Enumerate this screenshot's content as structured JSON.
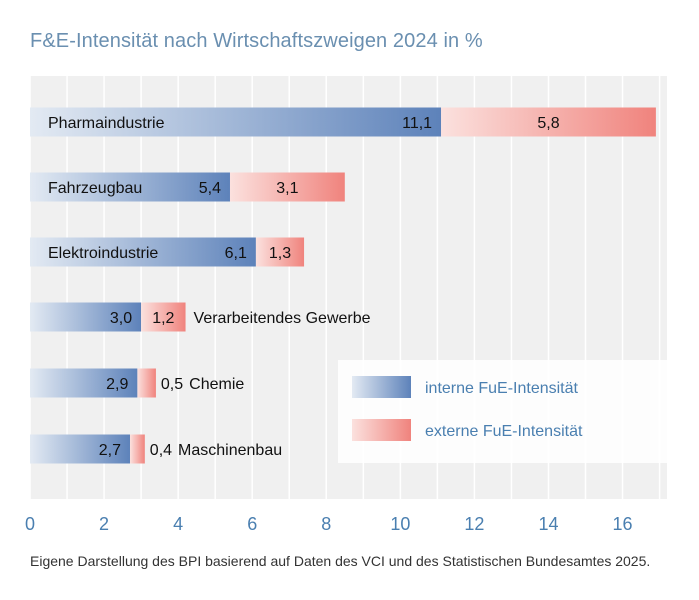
{
  "chart_data": {
    "type": "bar",
    "orientation": "horizontal",
    "stacked": true,
    "title": "F&E-Intensität nach Wirtschaftszweigen 2024 in %",
    "categories": [
      "Pharmaindustrie",
      "Fahrzeugbau",
      "Elektroindustrie",
      "Verarbeitendes Gewerbe",
      "Chemie",
      "Maschinenbau"
    ],
    "category_label_position": [
      "inside",
      "inside",
      "inside",
      "outside",
      "outside",
      "outside"
    ],
    "series": [
      {
        "name": "interne FuE-Intensität",
        "values": [
          11.1,
          5.4,
          6.1,
          3.0,
          2.9,
          2.7
        ],
        "labels": [
          "11,1",
          "5,4",
          "6,1",
          "3,0",
          "2,9",
          "2,7"
        ]
      },
      {
        "name": "externe FuE-Intensität",
        "values": [
          5.8,
          3.1,
          1.3,
          1.2,
          0.5,
          0.4
        ],
        "labels": [
          "5,8",
          "3,1",
          "1,3",
          "1,2",
          "0,5",
          "0,4"
        ]
      }
    ],
    "xlim": [
      0,
      17.2
    ],
    "xticks": [
      0,
      2,
      4,
      6,
      8,
      10,
      12,
      14,
      16
    ],
    "grid": "vertical",
    "legend_position": "lower-right",
    "colors": {
      "interne_light": "#e3eaf3",
      "interne_dark": "#5d82ba",
      "externe_light": "#fbe1de",
      "externe_dark": "#f0837d",
      "plot_background": "#f0f0f0",
      "axis_ticks": "#4a7fb0",
      "title": "#6a8fb0"
    }
  },
  "source_note": "Eigene Darstellung des BPI basierend auf Daten des VCI und des Statistischen Bundesamtes 2025."
}
